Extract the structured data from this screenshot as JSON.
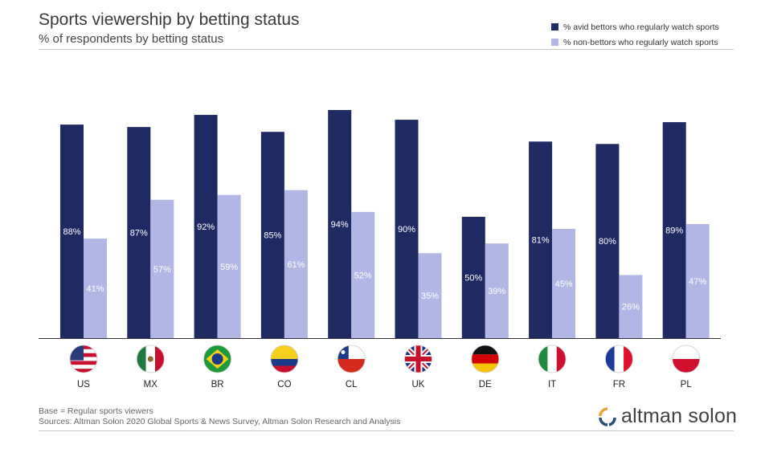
{
  "header": {
    "title": "Sports viewership by betting status",
    "subtitle": "% of respondents by betting status"
  },
  "legend": {
    "items": [
      {
        "label": "% avid bettors who regularly watch sports",
        "color": "#1f2a63"
      },
      {
        "label": "% non-bettors who regularly watch sports",
        "color": "#b1b6e4"
      }
    ]
  },
  "footer": {
    "base": "Base = Regular sports viewers",
    "sources": "Sources: Altman Solon 2020 Global Sports & News Survey, Altman Solon Research and Analysis",
    "logo_text": "altman solon"
  },
  "chart_data": {
    "type": "bar",
    "categories": [
      "US",
      "MX",
      "BR",
      "CO",
      "CL",
      "UK",
      "DE",
      "IT",
      "FR",
      "PL"
    ],
    "flags": [
      "us-flag-icon",
      "mx-flag-icon",
      "br-flag-icon",
      "co-flag-icon",
      "cl-flag-icon",
      "uk-flag-icon",
      "de-flag-icon",
      "it-flag-icon",
      "fr-flag-icon",
      "pl-flag-icon"
    ],
    "series": [
      {
        "name": "% avid bettors who regularly watch sports",
        "color": "#1f2a63",
        "values": [
          88,
          87,
          92,
          85,
          94,
          90,
          50,
          81,
          80,
          89
        ],
        "labels": [
          "88%",
          "87%",
          "92%",
          "85%",
          "94%",
          "90%",
          "50%",
          "81%",
          "80%",
          "89%"
        ]
      },
      {
        "name": "% non-bettors who regularly watch sports",
        "color": "#b1b6e4",
        "values": [
          41,
          57,
          59,
          61,
          52,
          35,
          39,
          45,
          26,
          47
        ],
        "labels": [
          "41%",
          "57%",
          "59%",
          "61%",
          "52%",
          "35%",
          "39%",
          "45%",
          "26%",
          "47%"
        ]
      }
    ],
    "ylim": [
      0,
      100
    ],
    "grid": false,
    "legend_position": "top-right"
  }
}
